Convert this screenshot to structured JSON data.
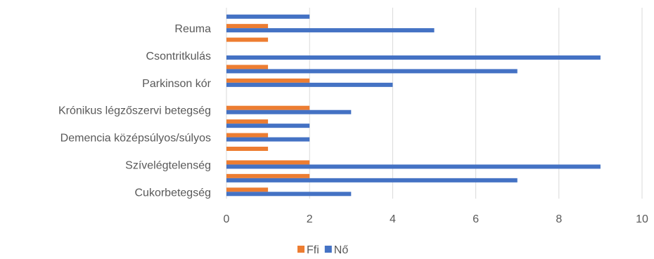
{
  "chart_data": {
    "type": "bar",
    "orientation": "horizontal",
    "categories": [
      "Cukorbetegség",
      "",
      "Szívelégtelenség",
      "",
      "Demencia középsúlyos/súlyos",
      "",
      "Krónikus légzőszervi betegség",
      "",
      "Parkinson kór",
      "",
      "Csontritkulás",
      "",
      "Reuma ",
      ""
    ],
    "series": [
      {
        "name": "Ffi",
        "color": "#ed7d31",
        "values": [
          1,
          2,
          2,
          1,
          1,
          1,
          2,
          0,
          2,
          1,
          0,
          1,
          1,
          0
        ]
      },
      {
        "name": "Nő",
        "color": "#4472c4",
        "values": [
          3,
          7,
          9,
          0,
          2,
          2,
          3,
          0,
          4,
          7,
          9,
          0,
          5,
          2
        ]
      }
    ],
    "xlim": [
      0,
      10
    ],
    "xticks": [
      0,
      2,
      4,
      6,
      8,
      10
    ],
    "grid": true,
    "legend_position": "bottom"
  }
}
